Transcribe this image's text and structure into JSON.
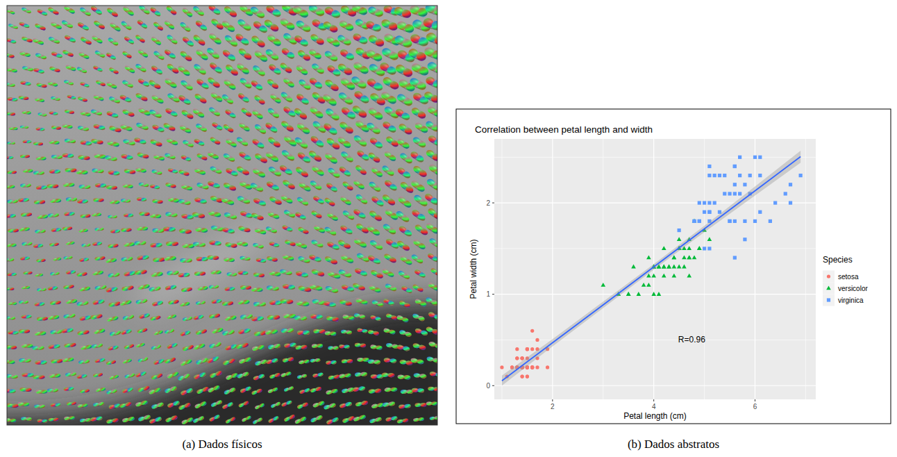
{
  "chart_data": [
    {
      "type": "image",
      "caption": "(a) Dados físicos"
    },
    {
      "type": "scatter",
      "caption": "(b) Dados abstratos",
      "title": "Correlation between petal length and width",
      "x_label": "Petal length (cm)",
      "y_label": "Petal width (cm)",
      "xlim": [
        0.85,
        7.2
      ],
      "xticks": [
        2,
        4,
        6
      ],
      "ylim": [
        -0.15,
        2.7
      ],
      "yticks": [
        0,
        1,
        2
      ],
      "grid": true,
      "legend": "right",
      "legend_title": "Species",
      "series": [
        {
          "name": "setosa",
          "color": "#F8766D",
          "marker": "circle",
          "x": [
            1.4,
            1.4,
            1.3,
            1.5,
            1.4,
            1.7,
            1.4,
            1.5,
            1.4,
            1.5,
            1.5,
            1.6,
            1.4,
            1.1,
            1.2,
            1.5,
            1.3,
            1.4,
            1.7,
            1.5,
            1.7,
            1.5,
            1.0,
            1.7,
            1.9,
            1.6,
            1.6,
            1.5,
            1.4,
            1.6,
            1.6,
            1.5,
            1.5,
            1.4,
            1.5,
            1.2,
            1.3,
            1.4,
            1.3,
            1.5,
            1.3,
            1.3,
            1.3,
            1.6,
            1.9,
            1.4,
            1.6,
            1.4,
            1.5,
            1.4
          ],
          "values": [
            0.2,
            0.2,
            0.2,
            0.2,
            0.2,
            0.4,
            0.3,
            0.2,
            0.2,
            0.1,
            0.2,
            0.2,
            0.1,
            0.1,
            0.2,
            0.4,
            0.4,
            0.3,
            0.3,
            0.3,
            0.2,
            0.4,
            0.2,
            0.5,
            0.2,
            0.2,
            0.4,
            0.2,
            0.2,
            0.2,
            0.2,
            0.4,
            0.1,
            0.2,
            0.2,
            0.2,
            0.2,
            0.1,
            0.2,
            0.2,
            0.3,
            0.3,
            0.2,
            0.6,
            0.4,
            0.3,
            0.2,
            0.2,
            0.2,
            0.2
          ]
        },
        {
          "name": "versicolor",
          "color": "#00BA38",
          "marker": "triangle",
          "x": [
            4.7,
            4.5,
            4.9,
            4.0,
            4.6,
            4.5,
            4.7,
            3.3,
            4.6,
            3.9,
            3.5,
            4.2,
            4.0,
            4.7,
            3.6,
            4.4,
            4.5,
            4.1,
            4.5,
            3.9,
            4.8,
            4.0,
            4.9,
            4.7,
            4.3,
            4.4,
            4.8,
            5.0,
            4.5,
            3.5,
            3.8,
            3.7,
            3.9,
            5.1,
            4.5,
            4.5,
            4.7,
            4.4,
            4.1,
            4.0,
            4.4,
            4.6,
            4.0,
            3.3,
            4.2,
            4.2,
            4.2,
            4.3,
            3.0,
            4.1
          ],
          "values": [
            1.4,
            1.5,
            1.5,
            1.3,
            1.5,
            1.3,
            1.6,
            1.0,
            1.3,
            1.4,
            1.0,
            1.5,
            1.0,
            1.4,
            1.3,
            1.4,
            1.5,
            1.0,
            1.5,
            1.1,
            1.8,
            1.3,
            1.5,
            1.2,
            1.3,
            1.4,
            1.4,
            1.7,
            1.5,
            1.0,
            1.1,
            1.0,
            1.2,
            1.6,
            1.5,
            1.6,
            1.5,
            1.3,
            1.3,
            1.3,
            1.2,
            1.4,
            1.2,
            1.0,
            1.3,
            1.2,
            1.3,
            1.3,
            1.1,
            1.3
          ]
        },
        {
          "name": "virginica",
          "color": "#619CFF",
          "marker": "square",
          "x": [
            6.0,
            5.1,
            5.9,
            5.6,
            5.8,
            6.6,
            4.5,
            6.3,
            5.8,
            6.1,
            5.1,
            5.3,
            5.5,
            5.0,
            5.1,
            5.3,
            5.5,
            6.7,
            6.9,
            5.0,
            5.7,
            4.9,
            6.7,
            4.9,
            5.7,
            6.0,
            4.8,
            4.9,
            5.6,
            5.8,
            6.1,
            6.4,
            5.6,
            5.1,
            5.6,
            6.1,
            5.6,
            5.5,
            4.8,
            5.4,
            5.6,
            5.1,
            5.1,
            5.9,
            5.7,
            5.2,
            5.0,
            5.2,
            5.4,
            5.1
          ],
          "values": [
            2.5,
            1.9,
            2.1,
            1.8,
            2.2,
            2.1,
            1.7,
            1.8,
            1.8,
            2.5,
            2.0,
            1.9,
            2.1,
            2.0,
            2.4,
            2.3,
            1.8,
            2.2,
            2.3,
            1.5,
            2.3,
            2.0,
            2.0,
            1.8,
            2.1,
            1.8,
            1.8,
            1.8,
            2.1,
            1.6,
            1.9,
            2.0,
            2.2,
            1.5,
            1.4,
            2.3,
            2.4,
            1.8,
            1.8,
            2.1,
            2.4,
            2.3,
            1.9,
            2.3,
            2.5,
            2.3,
            1.9,
            2.0,
            2.3,
            1.8
          ]
        }
      ],
      "trend": {
        "color": "#3366FF",
        "x": [
          1.0,
          2.0,
          3.0,
          4.0,
          5.0,
          6.0,
          6.9
        ],
        "values": [
          0.053,
          0.469,
          0.884,
          1.3,
          1.716,
          2.132,
          2.506
        ],
        "lower": [
          0.0,
          0.43,
          0.85,
          1.27,
          1.68,
          2.08,
          2.44
        ],
        "upper": [
          0.11,
          0.51,
          0.92,
          1.33,
          1.75,
          2.18,
          2.57
        ]
      },
      "annotations": [
        {
          "text": "R=0.96",
          "x": 4.75,
          "y": 0.5
        }
      ]
    }
  ]
}
